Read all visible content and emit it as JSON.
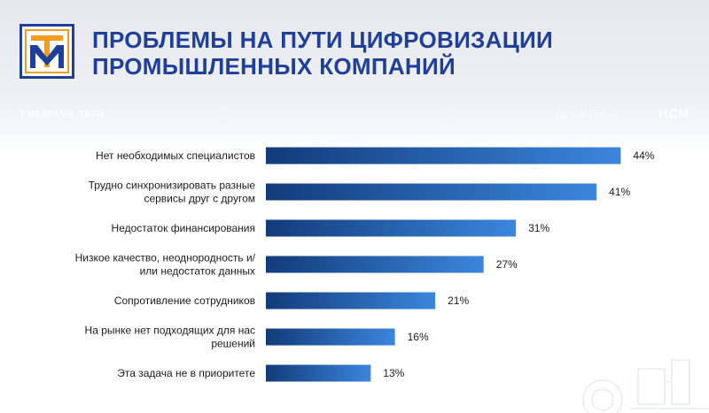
{
  "header": {
    "title_line1": "ПРОБЛЕМЫ НА ПУТИ ЦИФРОВИЗАЦИИ",
    "title_line2": "ПРОМЫШЛЕННЫХ КОМПАНИЙ",
    "handle": "T.ME/MASH_TECH",
    "source": "ИД НСМ | nrm.ru",
    "brand": "НСМ"
  },
  "colors": {
    "title": "#1f3f9c",
    "bar_start": "#123b7a",
    "bar_end": "#3b86dd",
    "logo_orange": "#f39c1e",
    "logo_blue": "#1f3f9c"
  },
  "chart_data": {
    "type": "bar",
    "orientation": "horizontal",
    "title": "",
    "xlabel": "",
    "ylabel": "",
    "xlim": [
      0,
      50
    ],
    "grid": false,
    "legend": "none",
    "value_suffix": "%",
    "categories": [
      [
        "Нет необходимых специалистов"
      ],
      [
        "Трудно синхронизировать разные",
        "сервисы друг с другом"
      ],
      [
        "Недостаток финансирования"
      ],
      [
        "Низкое качество, неоднородность и/",
        "или недостаток данных"
      ],
      [
        "Сопротивление сотрудников"
      ],
      [
        "На рынке нет подходящих для нас",
        "решений"
      ],
      [
        "Эта задача не в приоритете"
      ]
    ],
    "values": [
      44,
      41,
      31,
      27,
      21,
      16,
      13
    ]
  }
}
